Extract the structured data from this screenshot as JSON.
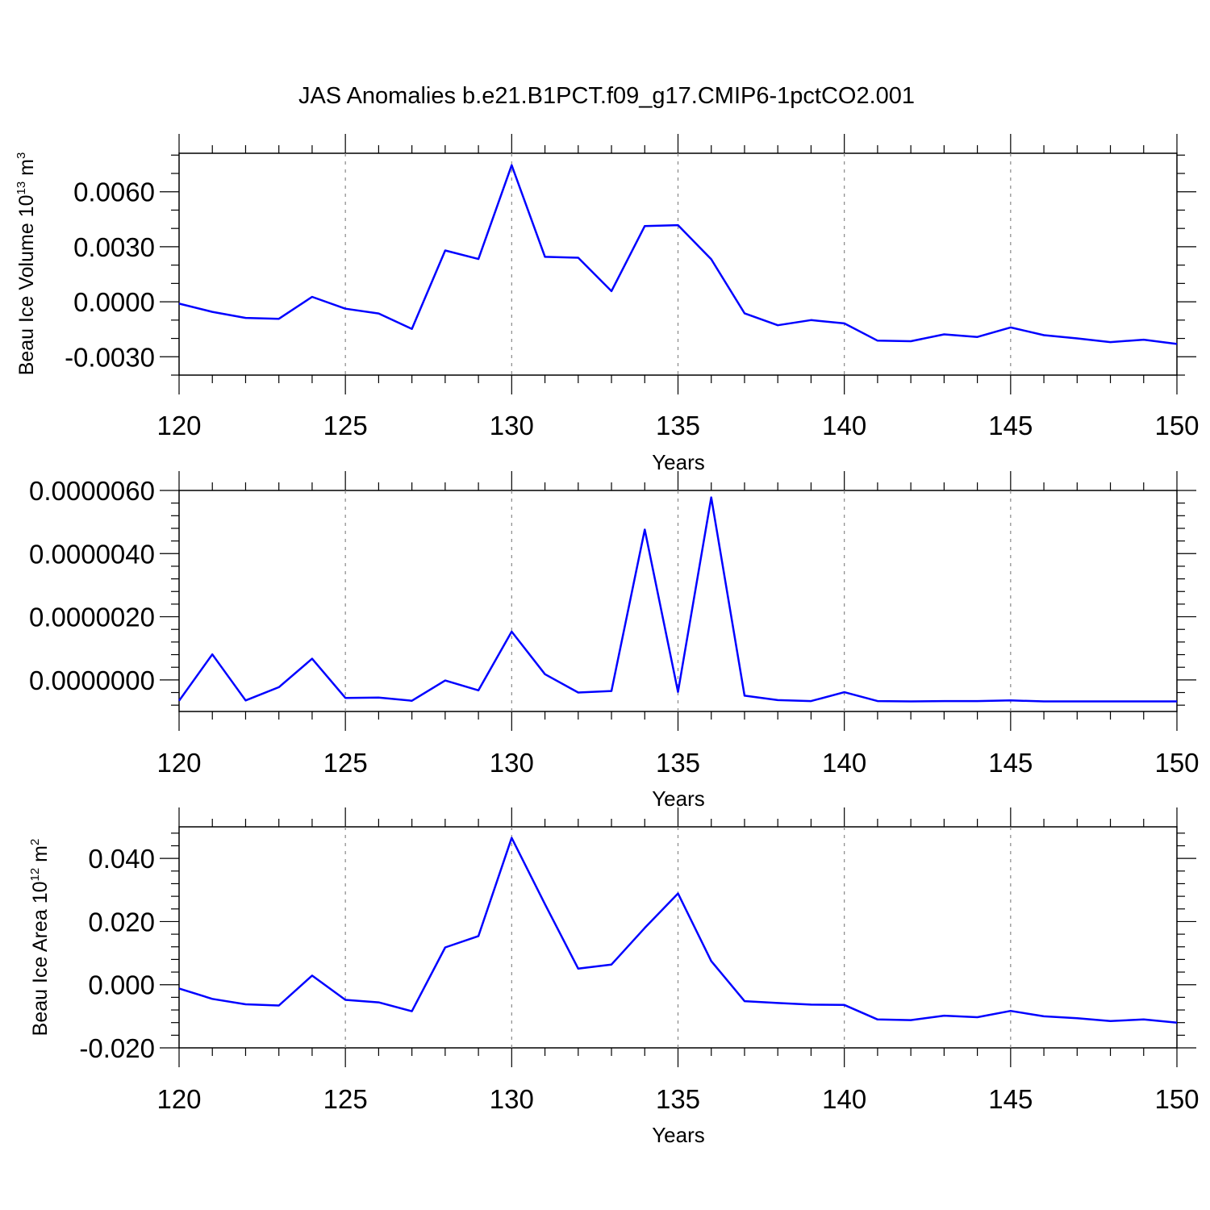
{
  "figure": {
    "title": "JAS Anomalies b.e21.B1PCT.f09_g17.CMIP6-1pctCO2.001",
    "line_color": "#0000ff",
    "grid_color": "#888888",
    "axis_color": "#000000"
  },
  "chart_data": [
    {
      "type": "line",
      "xlabel": "Years",
      "ylabel": {
        "text": "Beau Ice Volume 10",
        "superscript": "13",
        "unit": " m",
        "unit_superscript": "3"
      },
      "xlim": [
        120,
        150
      ],
      "ylim": [
        -0.004,
        0.0081
      ],
      "xticks": [
        120,
        125,
        130,
        135,
        140,
        145,
        150
      ],
      "xtick_labels": [
        "120",
        "125",
        "130",
        "135",
        "140",
        "145",
        "150"
      ],
      "yticks": [
        -0.003,
        0.0,
        0.003,
        0.006
      ],
      "ytick_labels": [
        "-0.0030",
        "0.0000",
        "0.0030",
        "0.0060"
      ],
      "y_minor_step": 0.001,
      "x_minor_step": 1,
      "grid_x": [
        125,
        130,
        135,
        140,
        145
      ],
      "x": [
        120,
        121,
        122,
        123,
        124,
        125,
        126,
        127,
        128,
        129,
        130,
        131,
        132,
        133,
        134,
        135,
        136,
        137,
        138,
        139,
        140,
        141,
        142,
        143,
        144,
        145,
        146,
        147,
        148,
        149,
        150
      ],
      "values": [
        -0.0001,
        -0.00055,
        -0.00088,
        -0.00093,
        0.00027,
        -0.00038,
        -0.00064,
        -0.00148,
        0.0028,
        0.00233,
        0.00745,
        0.00245,
        0.0024,
        0.00058,
        0.00413,
        0.00418,
        0.00232,
        -0.00063,
        -0.00128,
        -0.001,
        -0.00118,
        -0.00212,
        -0.00215,
        -0.00178,
        -0.00192,
        -0.0014,
        -0.00182,
        -0.002,
        -0.0022,
        -0.00207,
        -0.0023
      ]
    },
    {
      "type": "line",
      "xlabel": "Years",
      "xlim": [
        120,
        150
      ],
      "ylim": [
        -1e-06,
        6e-06
      ],
      "xticks": [
        120,
        125,
        130,
        135,
        140,
        145,
        150
      ],
      "xtick_labels": [
        "120",
        "125",
        "130",
        "135",
        "140",
        "145",
        "150"
      ],
      "yticks": [
        0.0,
        2e-06,
        4e-06,
        6e-06
      ],
      "ytick_labels": [
        "0.0000000",
        "0.0000020",
        "0.0000040",
        "0.0000060"
      ],
      "y_minor_step": 4e-07,
      "x_minor_step": 1,
      "grid_x": [
        125,
        130,
        135,
        140,
        145
      ],
      "x": [
        120,
        121,
        122,
        123,
        124,
        125,
        126,
        127,
        128,
        129,
        130,
        131,
        132,
        133,
        134,
        135,
        136,
        137,
        138,
        139,
        140,
        141,
        142,
        143,
        144,
        145,
        146,
        147,
        148,
        149,
        150
      ],
      "values": [
        -6.6e-07,
        8.1e-07,
        -6.5e-07,
        -2.3e-07,
        6.7e-07,
        -5.7e-07,
        -5.6e-07,
        -6.6e-07,
        -2e-08,
        -3.3e-07,
        1.53e-06,
        1.8e-07,
        -4e-07,
        -3.5e-07,
        4.76e-06,
        -3.8e-07,
        5.78e-06,
        -5e-07,
        -6.4e-07,
        -6.7e-07,
        -3.9e-07,
        -6.7e-07,
        -6.8e-07,
        -6.7e-07,
        -6.7e-07,
        -6.5e-07,
        -6.8e-07,
        -6.8e-07,
        -6.8e-07,
        -6.8e-07,
        -6.8e-07
      ]
    },
    {
      "type": "line",
      "xlabel": "Years",
      "ylabel": {
        "text": "Beau Ice Area 10",
        "superscript": "12",
        "unit": " m",
        "unit_superscript": "2"
      },
      "xlim": [
        120,
        150
      ],
      "ylim": [
        -0.02,
        0.05
      ],
      "xticks": [
        120,
        125,
        130,
        135,
        140,
        145,
        150
      ],
      "xtick_labels": [
        "120",
        "125",
        "130",
        "135",
        "140",
        "145",
        "150"
      ],
      "yticks": [
        -0.02,
        0.0,
        0.02,
        0.04
      ],
      "ytick_labels": [
        "-0.020",
        "0.000",
        "0.020",
        "0.040"
      ],
      "y_minor_step": 0.004,
      "x_minor_step": 1,
      "grid_x": [
        125,
        130,
        135,
        140,
        145
      ],
      "x": [
        120,
        121,
        122,
        123,
        124,
        125,
        126,
        127,
        128,
        129,
        130,
        131,
        132,
        133,
        134,
        135,
        136,
        137,
        138,
        139,
        140,
        141,
        142,
        143,
        144,
        145,
        146,
        147,
        148,
        149,
        150
      ],
      "values": [
        -0.0012,
        -0.0045,
        -0.0062,
        -0.0066,
        0.0029,
        -0.0048,
        -0.0056,
        -0.0084,
        0.0118,
        0.0154,
        0.0465,
        0.0255,
        0.0051,
        0.0064,
        0.018,
        0.0289,
        0.0075,
        -0.0052,
        -0.0058,
        -0.0063,
        -0.0064,
        -0.011,
        -0.0112,
        -0.0098,
        -0.0103,
        -0.0083,
        -0.01,
        -0.0106,
        -0.0115,
        -0.011,
        -0.012
      ]
    }
  ]
}
